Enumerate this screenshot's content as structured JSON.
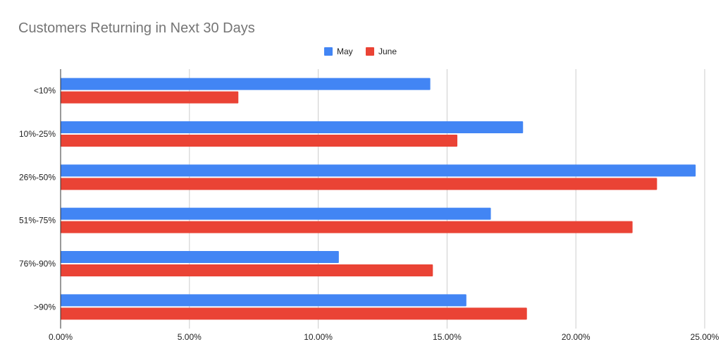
{
  "chart_data": {
    "type": "bar",
    "orientation": "horizontal",
    "title": "Customers Returning in Next 30 Days",
    "categories": [
      "<10%",
      "10%-25%",
      "26%-50%",
      "51%-75%",
      "76%-90%",
      ">90%"
    ],
    "series": [
      {
        "name": "May",
        "color": "#4285f4",
        "values": [
          14.35,
          17.95,
          24.65,
          16.7,
          10.8,
          15.75
        ]
      },
      {
        "name": "June",
        "color": "#ea4335",
        "values": [
          6.9,
          15.4,
          23.15,
          22.2,
          14.45,
          18.1
        ]
      }
    ],
    "xticks": [
      "0.00%",
      "5.00%",
      "10.00%",
      "15.00%",
      "20.00%",
      "25.00%"
    ],
    "xlim": [
      0,
      25
    ],
    "grid": true,
    "legend": "top-center"
  }
}
